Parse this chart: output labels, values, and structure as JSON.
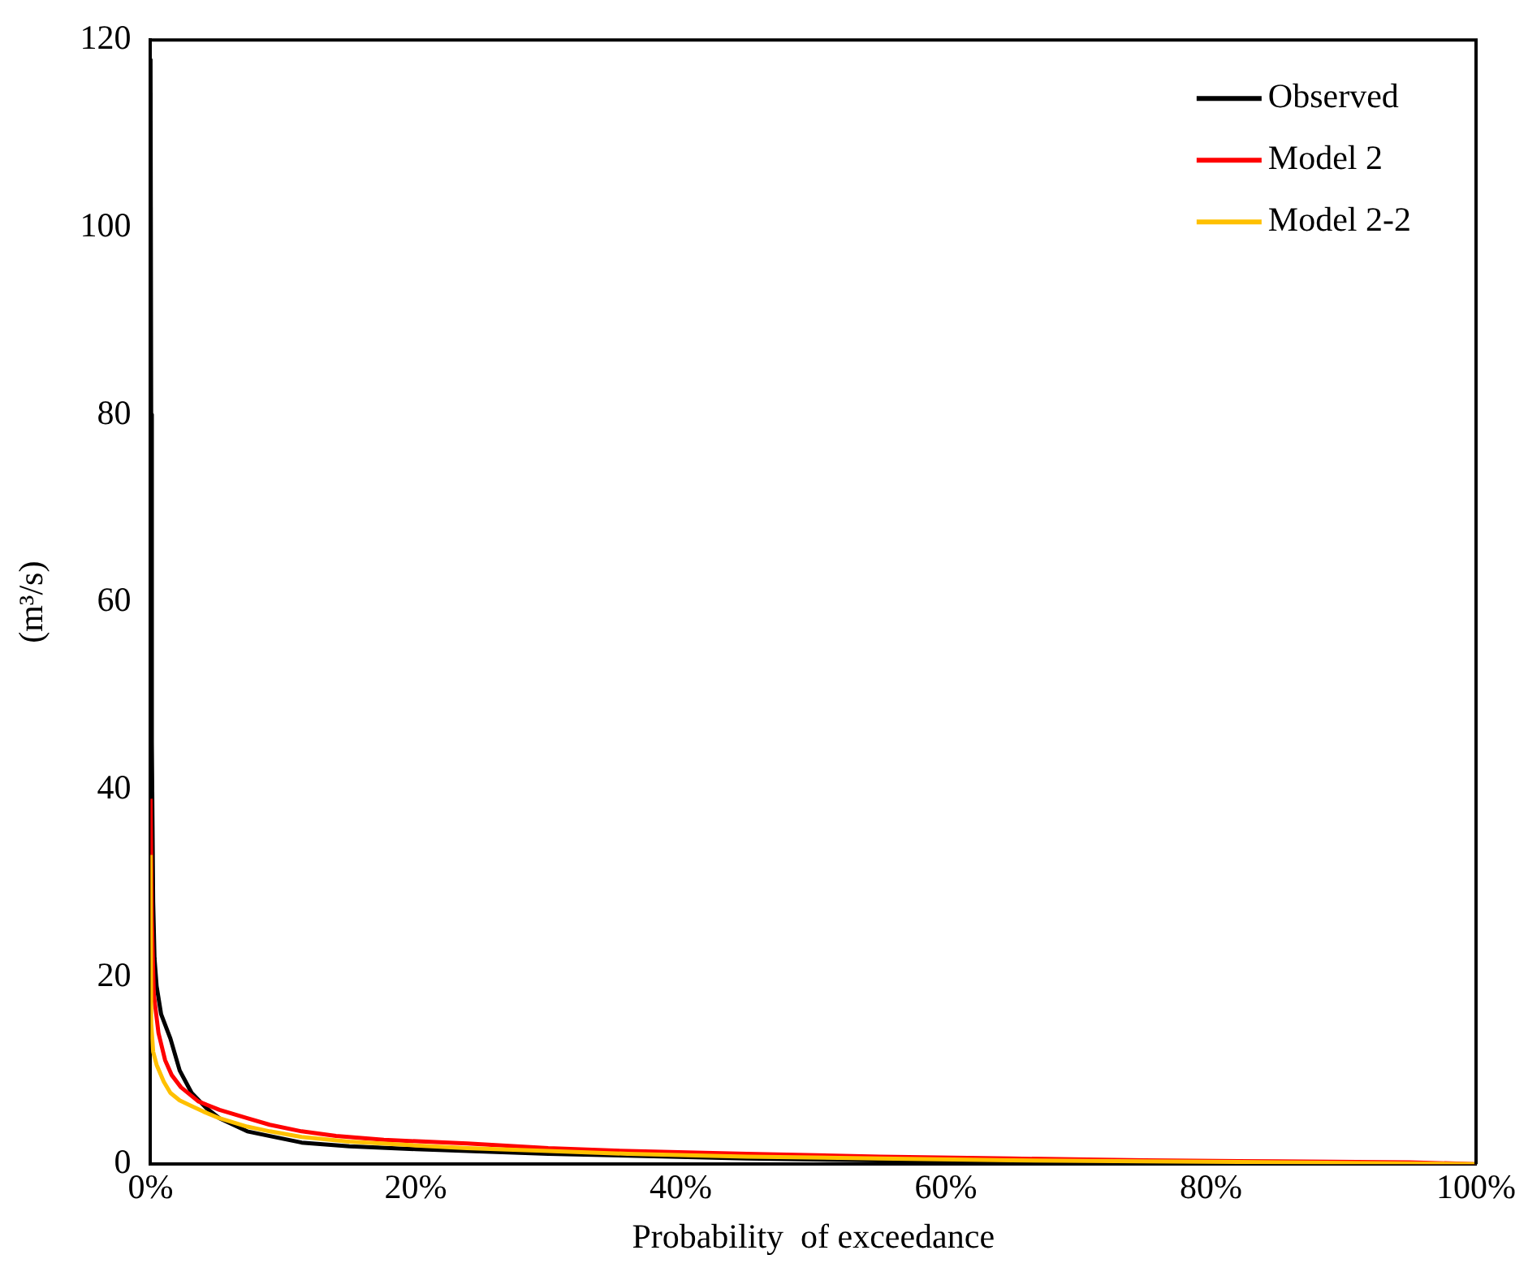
{
  "chart_data": {
    "type": "line",
    "xlabel": "Probability  of exceedance",
    "ylabel": "(m³/s)",
    "xlim": [
      0,
      100
    ],
    "ylim": [
      0,
      120
    ],
    "xticks": [
      {
        "value": 0,
        "label": "0%"
      },
      {
        "value": 20,
        "label": "20%"
      },
      {
        "value": 40,
        "label": "40%"
      },
      {
        "value": 60,
        "label": "60%"
      },
      {
        "value": 80,
        "label": "80%"
      },
      {
        "value": 100,
        "label": "100%"
      }
    ],
    "yticks": [
      0,
      20,
      40,
      60,
      80,
      100,
      120
    ],
    "grid": false,
    "legend": "top right",
    "marker": "none",
    "line_style": "solid",
    "series": [
      {
        "name": "Observed",
        "color": "#000000",
        "x": [
          0,
          0.05,
          0.1,
          0.2,
          0.3,
          0.46,
          0.8,
          1.5,
          2.2,
          3.1,
          4.2,
          5.2,
          7.3,
          9,
          11.4,
          15,
          20,
          23.9,
          30,
          36,
          45,
          55,
          65,
          75,
          85,
          95
        ],
        "values": [
          118,
          80,
          45,
          28,
          22,
          19,
          16,
          13.4,
          10,
          7.6,
          6,
          4.9,
          3.5,
          3,
          2.3,
          1.9,
          1.6,
          1.4,
          1.1,
          0.9,
          0.6,
          0.4,
          0.2,
          0.1,
          0.05,
          0
        ]
      },
      {
        "name": "Model 2",
        "color": "#ff0000",
        "x": [
          0,
          0.1,
          0.25,
          0.6,
          1.1,
          1.6,
          2.3,
          3.6,
          5.2,
          7.3,
          9,
          11.4,
          14,
          17.6,
          23.9,
          30,
          36,
          45,
          55,
          65,
          75,
          85,
          95,
          100
        ],
        "values": [
          39,
          26,
          18.1,
          14,
          11.1,
          9.5,
          8.2,
          6.7,
          5.8,
          4.9,
          4.2,
          3.5,
          3,
          2.6,
          2.2,
          1.7,
          1.4,
          1.1,
          0.8,
          0.6,
          0.4,
          0.3,
          0.2,
          0
        ]
      },
      {
        "name": "Model 2-2",
        "color": "#ffc000",
        "x": [
          0,
          0.05,
          0.2,
          0.46,
          1,
          1.5,
          2.2,
          3.1,
          4,
          5.2,
          7.3,
          9,
          11.4,
          15,
          20,
          23.9,
          30,
          36,
          45,
          55,
          65,
          75,
          85,
          100
        ],
        "values": [
          33,
          15,
          12,
          10.6,
          8.8,
          7.6,
          6.8,
          6.2,
          5.6,
          4.9,
          4,
          3.5,
          2.9,
          2.4,
          2,
          1.7,
          1.4,
          1.1,
          0.8,
          0.6,
          0.4,
          0.3,
          0.2,
          0
        ]
      }
    ]
  }
}
